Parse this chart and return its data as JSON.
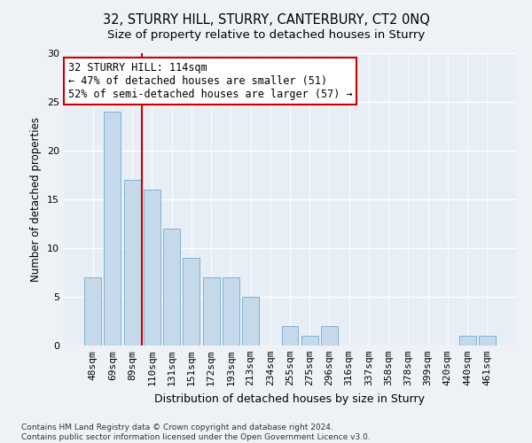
{
  "title": "32, STURRY HILL, STURRY, CANTERBURY, CT2 0NQ",
  "subtitle": "Size of property relative to detached houses in Sturry",
  "xlabel": "Distribution of detached houses by size in Sturry",
  "ylabel": "Number of detached properties",
  "categories": [
    "48sqm",
    "69sqm",
    "89sqm",
    "110sqm",
    "131sqm",
    "151sqm",
    "172sqm",
    "193sqm",
    "213sqm",
    "234sqm",
    "255sqm",
    "275sqm",
    "296sqm",
    "316sqm",
    "337sqm",
    "358sqm",
    "378sqm",
    "399sqm",
    "420sqm",
    "440sqm",
    "461sqm"
  ],
  "values": [
    7,
    24,
    17,
    16,
    12,
    9,
    7,
    7,
    5,
    0,
    2,
    1,
    2,
    0,
    0,
    0,
    0,
    0,
    0,
    1,
    1
  ],
  "bar_color": "#c5d9ea",
  "bar_edgecolor": "#7fb3d3",
  "vline_x_index": 3,
  "vline_color": "#cc0000",
  "annotation_text": "32 STURRY HILL: 114sqm\n← 47% of detached houses are smaller (51)\n52% of semi-detached houses are larger (57) →",
  "annotation_box_edgecolor": "#cc0000",
  "annotation_fontsize": 8.5,
  "ylim": [
    0,
    30
  ],
  "yticks": [
    0,
    5,
    10,
    15,
    20,
    25,
    30
  ],
  "title_fontsize": 10.5,
  "subtitle_fontsize": 9.5,
  "xlabel_fontsize": 9,
  "ylabel_fontsize": 8.5,
  "tick_fontsize": 8,
  "footer_line1": "Contains HM Land Registry data © Crown copyright and database right 2024.",
  "footer_line2": "Contains public sector information licensed under the Open Government Licence v3.0.",
  "footer_fontsize": 6.5,
  "background_color": "#eef2f7",
  "plot_background_color": "#e8eef5"
}
